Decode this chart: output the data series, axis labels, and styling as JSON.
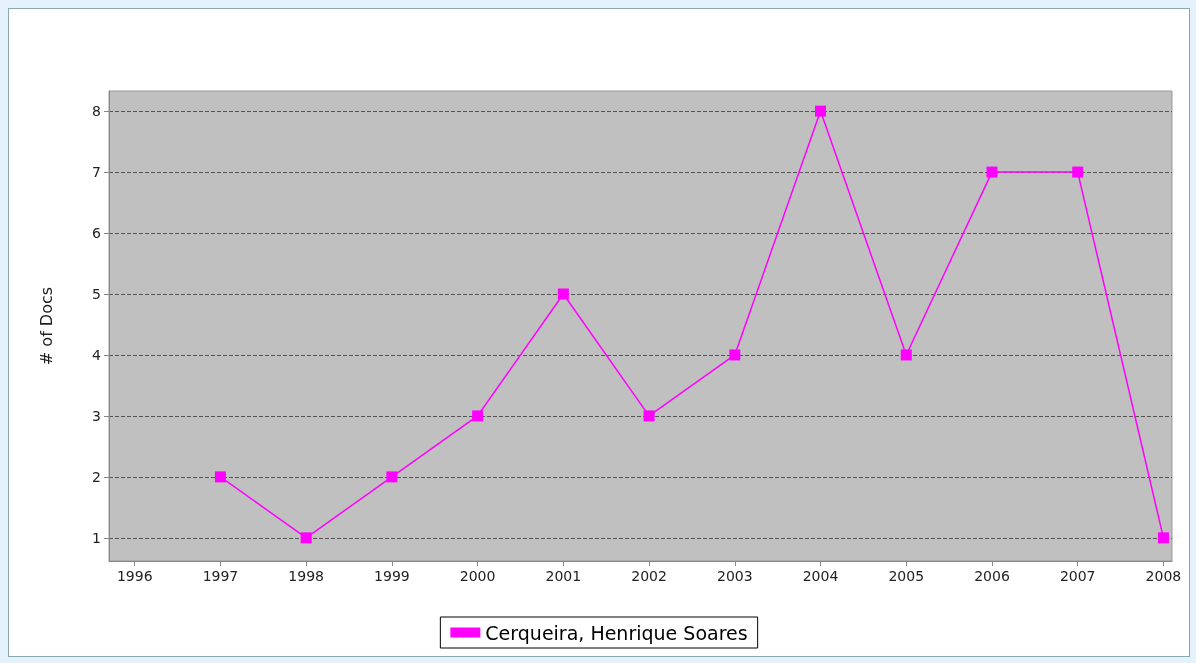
{
  "chart_data": {
    "type": "line",
    "ylabel": "# of Docs",
    "x": [
      1997,
      1998,
      1999,
      2000,
      2001,
      2002,
      2003,
      2004,
      2005,
      2006,
      2007,
      2008
    ],
    "series": [
      {
        "name": "Cerqueira, Henrique Soares",
        "color": "#ff00ff",
        "values": [
          2,
          1,
          2,
          3,
          5,
          3,
          4,
          8,
          4,
          7,
          7,
          1
        ]
      }
    ],
    "xlim": [
      1995.7,
      2008.1
    ],
    "xticks": [
      1996,
      1997,
      1998,
      1999,
      2000,
      2001,
      2002,
      2003,
      2004,
      2005,
      2006,
      2007,
      2008
    ],
    "ylim": [
      0.62,
      8.33
    ],
    "yticks": [
      1,
      2,
      3,
      4,
      5,
      6,
      7,
      8
    ],
    "grid": "y",
    "legend": "bottom",
    "marker": "square",
    "line_style": "solid"
  }
}
